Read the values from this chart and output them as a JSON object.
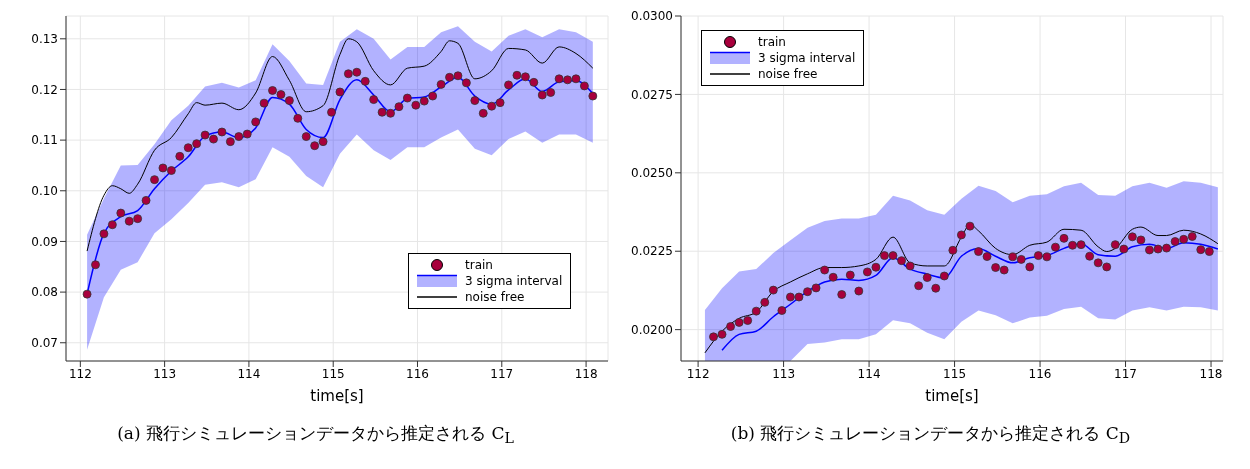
{
  "chart_data": [
    {
      "type": "line",
      "xlabel": "time[s]",
      "xlim": [
        111.83,
        118.26
      ],
      "xticks": [
        112,
        113,
        114,
        115,
        116,
        117,
        118
      ],
      "ylim": [
        0.0664,
        0.1345
      ],
      "yticks": [
        0.07,
        0.08,
        0.09,
        {
          "value": 0.1,
          "label": "0.10"
        },
        0.11,
        0.12,
        0.13
      ],
      "grid": true,
      "legend": "bottom right",
      "annotations": [
        "(a) 飛行シミュレーションデータから推定される C$_{L}$"
      ],
      "series": [
        {
          "name": "train",
          "type": "scatter",
          "marker": "circle",
          "color": "#a8003c",
          "x": [
            112.08,
            112.18,
            112.28,
            112.38,
            112.48,
            112.58,
            112.68,
            112.78,
            112.88,
            112.98,
            113.08,
            113.18,
            113.28,
            113.38,
            113.48,
            113.58,
            113.68,
            113.78,
            113.88,
            113.98,
            114.08,
            114.18,
            114.28,
            114.38,
            114.48,
            114.58,
            114.68,
            114.78,
            114.88,
            114.98,
            115.08,
            115.18,
            115.28,
            115.38,
            115.48,
            115.58,
            115.68,
            115.78,
            115.88,
            115.98,
            116.08,
            116.18,
            116.28,
            116.38,
            116.48,
            116.58,
            116.68,
            116.78,
            116.88,
            116.98,
            117.08,
            117.18,
            117.28,
            117.38,
            117.48,
            117.58,
            117.68,
            117.78,
            117.88,
            117.98,
            118.08
          ],
          "values": [
            0.0796,
            0.0854,
            0.0915,
            0.0933,
            0.0956,
            0.094,
            0.0945,
            0.0981,
            0.1022,
            0.1045,
            0.104,
            0.1068,
            0.1085,
            0.1093,
            0.111,
            0.1102,
            0.1116,
            0.1097,
            0.1107,
            0.1112,
            0.1136,
            0.1173,
            0.1198,
            0.119,
            0.1178,
            0.1143,
            0.1107,
            0.1089,
            0.1097,
            0.1155,
            0.1195,
            0.1231,
            0.1234,
            0.1216,
            0.118,
            0.1155,
            0.1153,
            0.1166,
            0.1183,
            0.1169,
            0.1177,
            0.1187,
            0.121,
            0.1224,
            0.1227,
            0.1213,
            0.1178,
            0.1153,
            0.1167,
            0.1174,
            0.1209,
            0.1228,
            0.1225,
            0.1214,
            0.1189,
            0.1194,
            0.1221,
            0.1219,
            0.1221,
            0.1207,
            0.1187
          ]
        },
        {
          "name": "3 sigma interval",
          "color": "#0000ff",
          "x": [
            112.08,
            112.28,
            112.48,
            112.68,
            112.88,
            113.08,
            113.28,
            113.48,
            113.68,
            113.88,
            114.08,
            114.28,
            114.48,
            114.68,
            114.88,
            115.08,
            115.28,
            115.48,
            115.68,
            115.88,
            116.08,
            116.28,
            116.48,
            116.68,
            116.88,
            117.08,
            117.28,
            117.48,
            117.68,
            117.88,
            118.08
          ],
          "values": [
            0.0796,
            0.0916,
            0.0949,
            0.0961,
            0.1004,
            0.1039,
            0.1067,
            0.1108,
            0.1116,
            0.1105,
            0.1124,
            0.1184,
            0.1171,
            0.1121,
            0.1105,
            0.118,
            0.1219,
            0.1189,
            0.1156,
            0.1182,
            0.1185,
            0.1205,
            0.1224,
            0.1187,
            0.1171,
            0.1199,
            0.1221,
            0.1196,
            0.1215,
            0.1217,
            0.1192
          ],
          "lower": [
            0.0686,
            0.079,
            0.0844,
            0.0859,
            0.0916,
            0.0944,
            0.0976,
            0.1012,
            0.1017,
            0.1007,
            0.1023,
            0.1086,
            0.1067,
            0.1029,
            0.1007,
            0.1073,
            0.1111,
            0.108,
            0.1061,
            0.1086,
            0.1086,
            0.1105,
            0.1121,
            0.1083,
            0.107,
            0.1102,
            0.1117,
            0.1095,
            0.1111,
            0.1111,
            0.1095
          ],
          "upper": [
            0.0913,
            0.0985,
            0.105,
            0.1051,
            0.1092,
            0.1139,
            0.1168,
            0.1206,
            0.1213,
            0.1204,
            0.1218,
            0.1289,
            0.1256,
            0.1212,
            0.1209,
            0.1294,
            0.1319,
            0.13,
            0.1259,
            0.1284,
            0.1284,
            0.1313,
            0.1325,
            0.1294,
            0.1275,
            0.1306,
            0.1319,
            0.1303,
            0.1319,
            0.1313,
            0.1294
          ]
        },
        {
          "name": "noise free",
          "color": "#000000",
          "x": [
            112.08,
            112.28,
            112.38,
            112.48,
            112.58,
            112.68,
            112.88,
            113.08,
            113.28,
            113.38,
            113.48,
            113.68,
            113.88,
            114.08,
            114.28,
            114.48,
            114.68,
            114.88,
            115.08,
            115.18,
            115.28,
            115.48,
            115.68,
            115.88,
            116.08,
            116.28,
            116.38,
            116.48,
            116.68,
            116.88,
            117.08,
            117.28,
            117.48,
            117.68,
            117.88,
            118.08
          ],
          "values": [
            0.0881,
            0.0991,
            0.101,
            0.1004,
            0.0995,
            0.1013,
            0.108,
            0.1105,
            0.1152,
            0.1174,
            0.1169,
            0.1173,
            0.116,
            0.1193,
            0.1265,
            0.1218,
            0.1156,
            0.1168,
            0.1269,
            0.13,
            0.1294,
            0.1237,
            0.1209,
            0.1242,
            0.1246,
            0.1275,
            0.1296,
            0.1291,
            0.1221,
            0.1237,
            0.1281,
            0.1278,
            0.1252,
            0.1284,
            0.1271,
            0.1242
          ]
        }
      ]
    },
    {
      "type": "line",
      "xlabel": "time[s]",
      "xlim": [
        111.8,
        118.14
      ],
      "xticks": [
        112,
        113,
        114,
        115,
        116,
        117,
        118
      ],
      "ylim": [
        0.019,
        0.03
      ],
      "yticks": [
        {
          "value": 0.02,
          "label": "0.0200"
        },
        {
          "value": 0.0225,
          "label": "0.0225"
        },
        {
          "value": 0.025,
          "label": "0.0250"
        },
        {
          "value": 0.0275,
          "label": "0.0275"
        },
        {
          "value": 0.03,
          "label": "0.0300"
        }
      ],
      "grid": true,
      "legend": "top left",
      "annotations": [
        "(b) 飛行シミュレーションデータから推定される C$_{D}$"
      ],
      "series": [
        {
          "name": "train",
          "type": "scatter",
          "marker": "circle",
          "color": "#a8003c",
          "x": [
            112.18,
            112.28,
            112.38,
            112.48,
            112.58,
            112.68,
            112.78,
            112.88,
            112.98,
            113.08,
            113.18,
            113.28,
            113.38,
            113.48,
            113.58,
            113.68,
            113.78,
            113.88,
            113.98,
            114.08,
            114.18,
            114.28,
            114.38,
            114.48,
            114.58,
            114.68,
            114.78,
            114.88,
            114.98,
            115.08,
            115.18,
            115.28,
            115.38,
            115.48,
            115.58,
            115.68,
            115.78,
            115.88,
            115.98,
            116.08,
            116.18,
            116.28,
            116.38,
            116.48,
            116.58,
            116.68,
            116.78,
            116.88,
            116.98,
            117.08,
            117.18,
            117.28,
            117.38,
            117.48,
            117.58,
            117.68,
            117.78,
            117.88,
            117.98
          ],
          "values": [
            0.01977,
            0.01985,
            0.0201,
            0.02023,
            0.02029,
            0.02059,
            0.02087,
            0.02126,
            0.02061,
            0.02104,
            0.02104,
            0.02121,
            0.02133,
            0.0219,
            0.02167,
            0.02112,
            0.02174,
            0.02123,
            0.02184,
            0.02199,
            0.02236,
            0.02236,
            0.0222,
            0.02203,
            0.0214,
            0.02166,
            0.02132,
            0.02171,
            0.02253,
            0.02302,
            0.0233,
            0.02249,
            0.02233,
            0.02198,
            0.0219,
            0.02232,
            0.02224,
            0.022,
            0.02236,
            0.02232,
            0.02263,
            0.02291,
            0.02269,
            0.02271,
            0.02234,
            0.02213,
            0.022,
            0.02271,
            0.02257,
            0.02296,
            0.02286,
            0.02254,
            0.02257,
            0.0226,
            0.02281,
            0.02288,
            0.02297,
            0.02255,
            0.02249
          ]
        },
        {
          "name": "3 sigma interval",
          "color": "#0000ff",
          "x": [
            112.08,
            112.28,
            112.48,
            112.68,
            112.88,
            113.08,
            113.28,
            113.48,
            113.68,
            113.88,
            114.08,
            114.28,
            114.48,
            114.68,
            114.88,
            115.08,
            115.28,
            115.48,
            115.68,
            115.88,
            116.08,
            116.28,
            116.48,
            116.68,
            116.88,
            117.08,
            117.28,
            117.48,
            117.68,
            117.88,
            118.08
          ],
          "values": [
            null,
            0.01934,
            0.01985,
            0.01995,
            0.02041,
            0.02081,
            0.02122,
            0.02152,
            0.02161,
            0.02157,
            0.02173,
            0.02229,
            0.02193,
            0.02177,
            0.02165,
            0.02234,
            0.02259,
            0.02234,
            0.02213,
            0.02229,
            0.02236,
            0.02259,
            0.02274,
            0.02239,
            0.02234,
            0.02264,
            0.02272,
            0.02259,
            0.02277,
            0.02272,
            0.02257
          ],
          "lower": [
            0.019,
            0.019,
            0.019,
            0.019,
            0.019,
            0.019,
            0.01954,
            0.01959,
            0.01969,
            0.01969,
            0.01985,
            0.0203,
            0.0202,
            0.0199,
            0.01969,
            0.02025,
            0.02061,
            0.02046,
            0.0202,
            0.02039,
            0.02044,
            0.02066,
            0.02073,
            0.02036,
            0.02032,
            0.02061,
            0.02071,
            0.02061,
            0.02073,
            0.02071,
            0.02061
          ],
          "upper": [
            0.02063,
            0.02132,
            0.02185,
            0.02193,
            0.02244,
            0.02285,
            0.02325,
            0.02346,
            0.02354,
            0.02354,
            0.02366,
            0.02427,
            0.02412,
            0.02381,
            0.02366,
            0.02417,
            0.02459,
            0.02442,
            0.02406,
            0.02427,
            0.02432,
            0.02457,
            0.02468,
            0.02429,
            0.02427,
            0.02457,
            0.02468,
            0.02452,
            0.02473,
            0.02468,
            0.02454
          ]
        },
        {
          "name": "noise free",
          "color": "#000000",
          "x": [
            112.08,
            112.28,
            112.48,
            112.68,
            112.88,
            113.08,
            113.28,
            113.48,
            113.68,
            113.88,
            114.08,
            114.28,
            114.48,
            114.68,
            114.88,
            115.08,
            115.18,
            115.28,
            115.48,
            115.68,
            115.88,
            116.08,
            116.28,
            116.48,
            116.68,
            116.78,
            116.88,
            117.08,
            117.18,
            117.38,
            117.48,
            117.68,
            117.88,
            118.08
          ],
          "values": [
            0.01926,
            0.01995,
            0.02036,
            0.02056,
            0.02122,
            0.02152,
            0.02178,
            0.02198,
            0.02198,
            0.02203,
            0.02224,
            0.02295,
            0.02213,
            0.02203,
            0.02203,
            0.02295,
            0.02335,
            0.02315,
            0.02259,
            0.02239,
            0.02269,
            0.02279,
            0.0232,
            0.02317,
            0.02264,
            0.02249,
            0.02259,
            0.0232,
            0.02327,
            0.023,
            0.023,
            0.02317,
            0.02305,
            0.02274
          ]
        }
      ]
    }
  ]
}
